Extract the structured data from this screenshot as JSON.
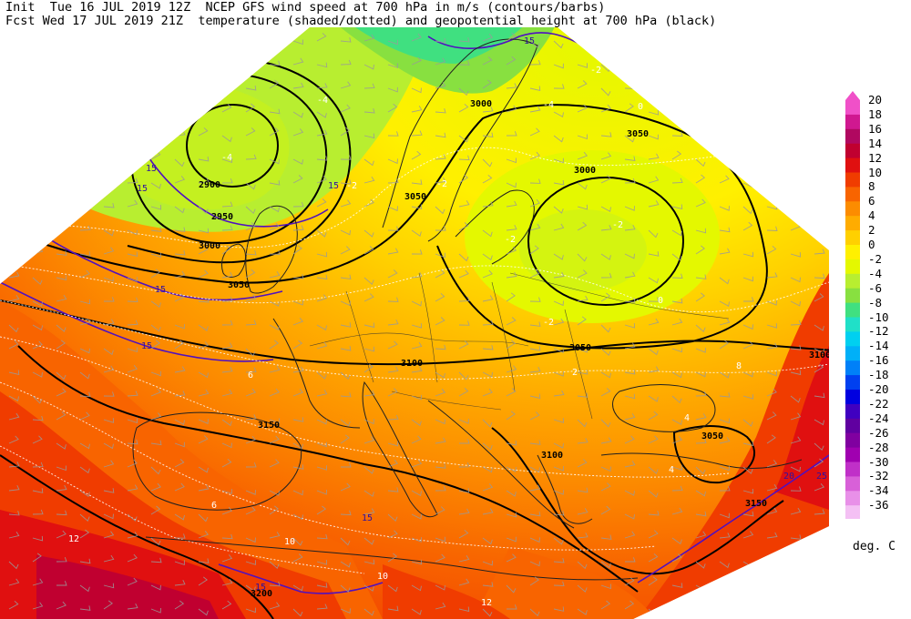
{
  "header": {
    "line1": "Init  Tue 16 JUL 2019 12Z  NCEP GFS wind speed at 700 hPa in m/s (contours/barbs)",
    "line2": "Fcst Wed 17 JUL 2019 21Z  temperature (shaded/dotted) and geopotential height at 700 hPa (black)"
  },
  "colorbar": {
    "unit": "deg. C",
    "entries": [
      {
        "label": "20",
        "color": "#f050c8"
      },
      {
        "label": "18",
        "color": "#d01890"
      },
      {
        "label": "16",
        "color": "#b00860"
      },
      {
        "label": "14",
        "color": "#c00030"
      },
      {
        "label": "12",
        "color": "#e01010"
      },
      {
        "label": "10",
        "color": "#f03c00"
      },
      {
        "label": "8",
        "color": "#f86400"
      },
      {
        "label": "6",
        "color": "#fc8c00"
      },
      {
        "label": "4",
        "color": "#ffac00"
      },
      {
        "label": "2",
        "color": "#ffd000"
      },
      {
        "label": "0",
        "color": "#fff000"
      },
      {
        "label": "-2",
        "color": "#e4f800"
      },
      {
        "label": "-4",
        "color": "#b8ee30"
      },
      {
        "label": "-6",
        "color": "#88e040"
      },
      {
        "label": "-8",
        "color": "#40e080"
      },
      {
        "label": "-10",
        "color": "#20e0c8"
      },
      {
        "label": "-12",
        "color": "#00d0f0"
      },
      {
        "label": "-14",
        "color": "#00b0f8"
      },
      {
        "label": "-16",
        "color": "#0080f8"
      },
      {
        "label": "-18",
        "color": "#0040f0"
      },
      {
        "label": "-20",
        "color": "#0000e0"
      },
      {
        "label": "-22",
        "color": "#4000c0"
      },
      {
        "label": "-24",
        "color": "#6000a0"
      },
      {
        "label": "-26",
        "color": "#8000a0"
      },
      {
        "label": "-28",
        "color": "#a000b0"
      },
      {
        "label": "-30",
        "color": "#c030c8"
      },
      {
        "label": "-32",
        "color": "#d860d8"
      },
      {
        "label": "-34",
        "color": "#e890e8"
      },
      {
        "label": "-36",
        "color": "#f4c0f4"
      }
    ]
  },
  "map": {
    "height_labels": [
      "2900",
      "2950",
      "3000",
      "3000",
      "3000",
      "3050",
      "3050",
      "3050",
      "3050",
      "3050",
      "3100",
      "3100",
      "3100",
      "3150",
      "3150",
      "3200"
    ],
    "wind_labels": [
      "15",
      "15",
      "15",
      "15",
      "15",
      "15",
      "15",
      "15",
      "15",
      "20",
      "25"
    ],
    "temp_labels": [
      "-4",
      "-4",
      "-4",
      "-2",
      "-2",
      "-2",
      "-2",
      "-2",
      "-2",
      "0",
      "0",
      "2",
      "4",
      "4",
      "6",
      "6",
      "8",
      "10",
      "10",
      "12",
      "12"
    ]
  }
}
